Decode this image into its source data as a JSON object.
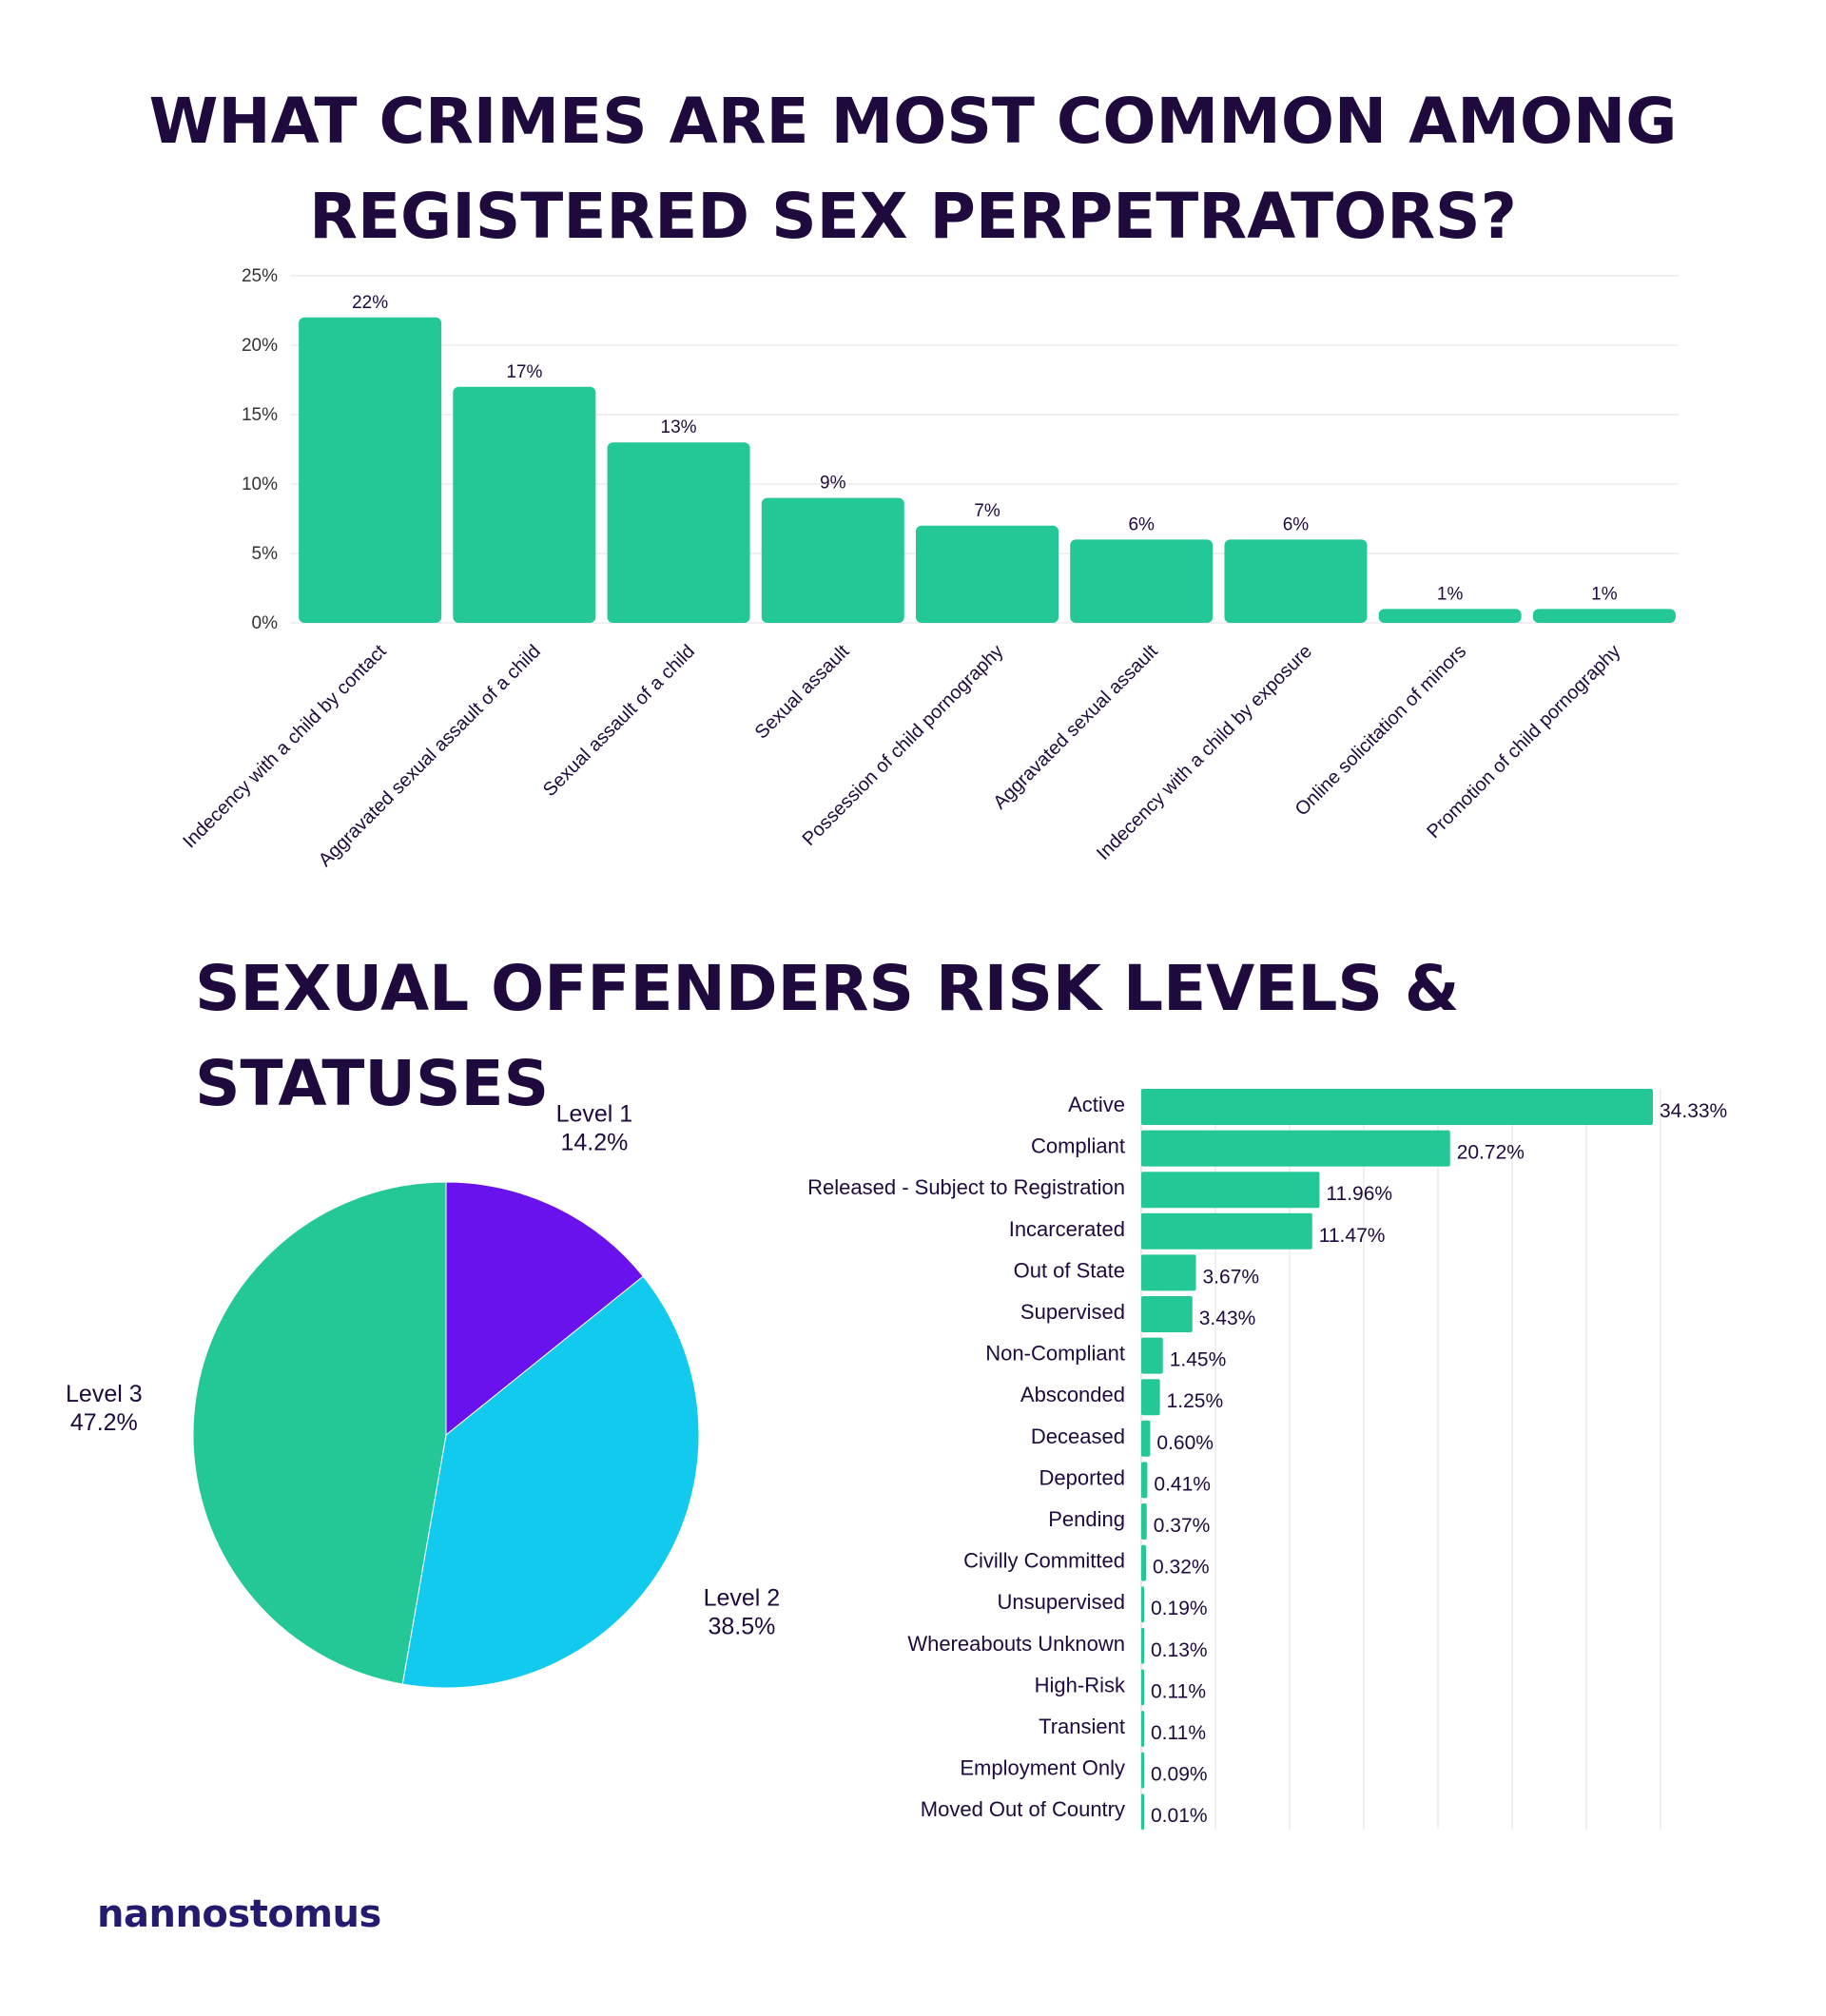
{
  "title_top": "WHAT CRIMES ARE MOST COMMON AMONG REGISTERED SEX PERPETRATORS?",
  "title_bottom": "SEXUAL OFFENDERS RISK LEVELS & STATUSES",
  "brand": "nannostomus",
  "colors": {
    "bar": "#24c897",
    "purple": "#6a12ee",
    "cyan": "#12c9ee",
    "green": "#24c897",
    "title": "#1e0a3c"
  },
  "chart_data": [
    {
      "type": "bar",
      "categories": [
        "Indecency with a child by contact",
        "Aggravated sexual assault of a child",
        "Sexual assault of a child",
        "Sexual assault",
        "Possession of child pornography",
        "Aggravated sexual assault",
        "Indecency with a child by exposure",
        "Online solicitation of minors",
        "Promotion of child pornography"
      ],
      "values": [
        22,
        17,
        13,
        9,
        7,
        6,
        6,
        1,
        1
      ],
      "value_labels": [
        "22%",
        "17%",
        "13%",
        "9%",
        "7%",
        "6%",
        "6%",
        "1%",
        "1%"
      ],
      "yticks": [
        "0%",
        "5%",
        "10%",
        "15%",
        "20%",
        "25%"
      ],
      "ylim": [
        0,
        25
      ],
      "grid": true
    },
    {
      "type": "pie",
      "labels": [
        "Level 1",
        "Level 2",
        "Level 3"
      ],
      "values": [
        14.2,
        38.5,
        47.2
      ],
      "value_labels": [
        "14.2%",
        "38.5%",
        "47.2%"
      ],
      "colors": [
        "#6a12ee",
        "#12c9ee",
        "#24c897"
      ]
    },
    {
      "type": "bar",
      "orientation": "horizontal",
      "categories": [
        "Active",
        "Compliant",
        "Released - Subject to Registration",
        "Incarcerated",
        "Out of State",
        "Supervised",
        "Non-Compliant",
        "Absconded",
        "Deceased",
        "Deported",
        "Pending",
        "Civilly Committed",
        "Unsupervised",
        "Whereabouts Unknown",
        "High-Risk",
        "Transient",
        "Employment Only",
        "Moved Out of Country"
      ],
      "values": [
        34.33,
        20.72,
        11.96,
        11.47,
        3.67,
        3.43,
        1.45,
        1.25,
        0.6,
        0.41,
        0.37,
        0.32,
        0.19,
        0.13,
        0.11,
        0.11,
        0.09,
        0.01
      ],
      "value_labels": [
        "34.33%",
        "20.72%",
        "11.96%",
        "11.47%",
        "3.67%",
        "3.43%",
        "1.45%",
        "1.25%",
        "0.60%",
        "0.41%",
        "0.37%",
        "0.32%",
        "0.19%",
        "0.13%",
        "0.11%",
        "0.11%",
        "0.09%",
        "0.01%"
      ],
      "grid": true
    }
  ]
}
